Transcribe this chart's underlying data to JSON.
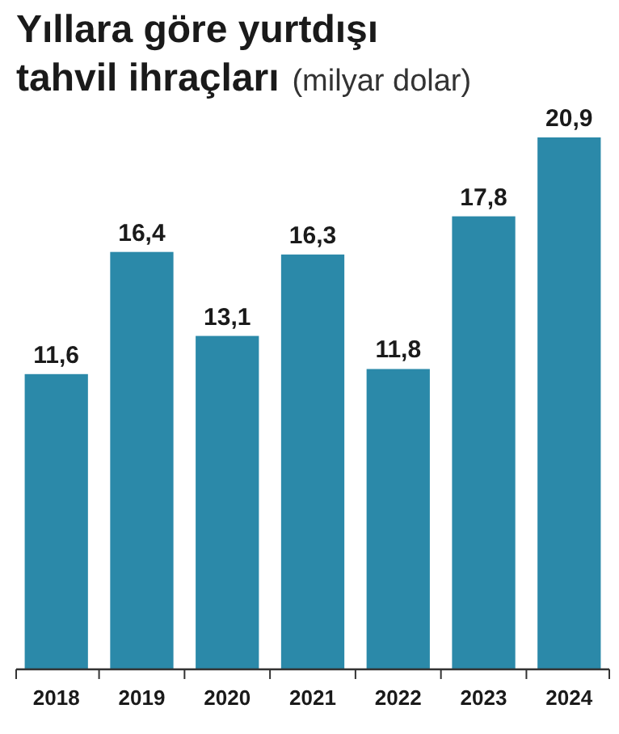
{
  "chart_data": {
    "type": "bar",
    "title": "Yıllara göre yurtdışı tahvil ihraçları",
    "subtitle": "(milyar dolar)",
    "categories": [
      "2018",
      "2019",
      "2020",
      "2021",
      "2022",
      "2023",
      "2024"
    ],
    "values": [
      11.6,
      16.4,
      13.1,
      16.3,
      11.8,
      17.8,
      20.9
    ],
    "value_labels": [
      "11,6",
      "16,4",
      "13,1",
      "16,3",
      "11,8",
      "17,8",
      "20,9"
    ],
    "color": "#2b89a9",
    "grid": false
  }
}
